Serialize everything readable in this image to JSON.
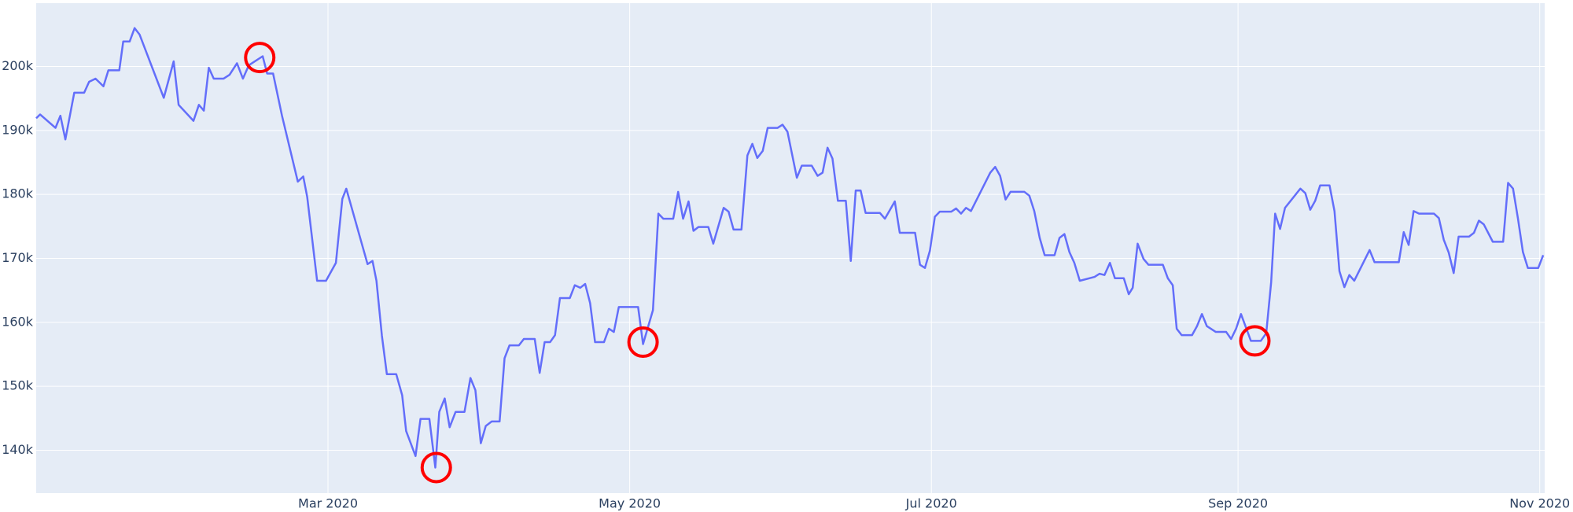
{
  "chart_data": {
    "type": "line",
    "color": "#636efa",
    "grid": true,
    "xlim": [
      1,
      306
    ],
    "ylim": [
      133300,
      209900
    ],
    "xticks": [
      {
        "value": 60,
        "label": "Mar 2020"
      },
      {
        "value": 121,
        "label": "May 2020"
      },
      {
        "value": 182,
        "label": "Jul 2020"
      },
      {
        "value": 244,
        "label": "Sep 2020"
      },
      {
        "value": 305,
        "label": "Nov 2020"
      }
    ],
    "yticks": [
      {
        "value": 140000,
        "label": "140k"
      },
      {
        "value": 150000,
        "label": "150k"
      },
      {
        "value": 160000,
        "label": "160k"
      },
      {
        "value": 170000,
        "label": "170k"
      },
      {
        "value": 180000,
        "label": "180k"
      },
      {
        "value": 190000,
        "label": "190k"
      },
      {
        "value": 200000,
        "label": "200k"
      }
    ],
    "x": [
      1,
      1.8,
      4.9,
      5.9,
      6.9,
      8.7,
      10.7,
      11.7,
      13,
      14.6,
      15.6,
      17.8,
      18.6,
      19.9,
      20.9,
      21.9,
      26.8,
      28.8,
      29.8,
      32.8,
      33.9,
      34.9,
      35.9,
      36.9,
      38.9,
      40.1,
      41.6,
      42.8,
      44,
      46.8,
      47.7,
      48.9,
      50.7,
      53.9,
      55,
      55.8,
      57.8,
      59.6,
      61.6,
      62.9,
      63.7,
      68,
      69,
      69.8,
      70.9,
      71.9,
      73.8,
      75,
      75.8,
      77.7,
      78.7,
      80.5,
      81.7,
      82.5,
      83.6,
      84.6,
      85.8,
      87.6,
      88.8,
      89.8,
      90.9,
      91.9,
      93.1,
      94.7,
      95.7,
      96.7,
      98.6,
      99.6,
      101.8,
      102.8,
      103.8,
      104.9,
      105.9,
      106.9,
      108.9,
      109.9,
      111,
      112,
      113,
      114,
      115.8,
      116.8,
      117.8,
      118.8,
      121.1,
      122.7,
      123.7,
      125.7,
      126.8,
      127.8,
      129.8,
      130.8,
      131.8,
      132.9,
      133.9,
      134.9,
      136.9,
      137.9,
      140,
      141,
      142,
      143.6,
      144.8,
      145.8,
      146.8,
      147.9,
      148.9,
      150.9,
      151.9,
      152.9,
      154.8,
      155.8,
      157.8,
      159,
      160,
      161,
      162,
      163.1,
      164.7,
      165.7,
      166.7,
      167.7,
      168.7,
      171.6,
      172.6,
      174.6,
      175.6,
      178.7,
      179.7,
      180.7,
      181.7,
      182.7,
      183.7,
      186,
      187,
      188,
      189,
      190,
      193.9,
      194.9,
      195.9,
      197,
      198,
      200.8,
      201.8,
      202.8,
      203.9,
      204.9,
      206.9,
      207.9,
      208.9,
      209.9,
      210.9,
      212,
      215,
      216,
      217,
      218.1,
      219.1,
      220.9,
      221.9,
      222.7,
      223.7,
      224.9,
      225.9,
      228.8,
      229.8,
      230.8,
      231.6,
      232.6,
      234.7,
      235.7,
      236.7,
      237.7,
      239.5,
      241.6,
      242.6,
      243.6,
      244.6,
      246.6,
      248.6,
      249.7,
      250.7,
      251.5,
      252.5,
      253.5,
      256.6,
      257.6,
      258.6,
      259.6,
      260.6,
      262.5,
      263.5,
      264.5,
      265.5,
      266.5,
      267.5,
      270.6,
      271.6,
      276.5,
      277.5,
      278.5,
      279.5,
      280.6,
      283.6,
      284.6,
      285.6,
      286.6,
      287.6,
      288.6,
      290.7,
      291.7,
      292.7,
      293.7,
      295.5,
      297.6,
      298.6,
      299.6,
      300.6,
      301.6,
      302.6,
      304.7,
      305.7
    ],
    "values": [
      191900,
      192500,
      190400,
      192300,
      188600,
      195900,
      195900,
      197600,
      198100,
      196900,
      199400,
      199400,
      203900,
      203900,
      206000,
      205000,
      195100,
      200800,
      194000,
      191500,
      194000,
      193100,
      199800,
      198100,
      198100,
      198700,
      200500,
      198100,
      200200,
      201600,
      198900,
      198900,
      192300,
      182000,
      182800,
      179600,
      166500,
      166500,
      169300,
      179300,
      180900,
      169100,
      169600,
      166500,
      157900,
      151900,
      151900,
      148600,
      143000,
      139100,
      144900,
      144900,
      137300,
      146000,
      148100,
      143600,
      146000,
      146000,
      151300,
      149400,
      141100,
      143800,
      144500,
      144500,
      154400,
      156400,
      156400,
      157400,
      157400,
      152100,
      156900,
      156900,
      158000,
      163800,
      163800,
      165800,
      165400,
      166000,
      163000,
      156900,
      156900,
      159000,
      158500,
      162400,
      162400,
      162400,
      156600,
      161900,
      177000,
      176200,
      176200,
      180400,
      176200,
      178900,
      174300,
      174900,
      174900,
      172300,
      177900,
      177300,
      174500,
      174500,
      186100,
      187900,
      185700,
      186800,
      190400,
      190400,
      190900,
      189800,
      182600,
      184500,
      184500,
      182900,
      183400,
      187300,
      185600,
      179000,
      179000,
      169600,
      180600,
      180600,
      177100,
      177100,
      176200,
      178900,
      174000,
      174000,
      169000,
      168500,
      171200,
      176500,
      177300,
      177300,
      177800,
      177000,
      177900,
      177400,
      183400,
      184300,
      182900,
      179200,
      180400,
      180400,
      179800,
      177400,
      173200,
      170500,
      170500,
      173200,
      173800,
      171000,
      169300,
      166500,
      167100,
      167600,
      167400,
      169300,
      166900,
      166900,
      164400,
      165400,
      172300,
      169900,
      169000,
      169000,
      166900,
      165800,
      159000,
      158000,
      158000,
      159400,
      161300,
      159400,
      158500,
      158500,
      157400,
      159000,
      161300,
      157100,
      157100,
      158300,
      166300,
      177000,
      174600,
      177900,
      180900,
      180200,
      177600,
      179000,
      181400,
      181400,
      177400,
      168000,
      165500,
      167400,
      166500,
      171300,
      169400,
      169400,
      174100,
      172100,
      177400,
      177000,
      177000,
      176300,
      172900,
      170900,
      167700,
      173400,
      173400,
      174000,
      175900,
      175300,
      172600,
      172600,
      181800,
      180900,
      176200,
      171000,
      168500,
      168500,
      170500
    ],
    "highlights": {
      "color": "#ff0000",
      "x": [
        46.2,
        81.9,
        123.7,
        247.4
      ],
      "values": [
        201400,
        137300,
        156900,
        157100
      ]
    }
  }
}
